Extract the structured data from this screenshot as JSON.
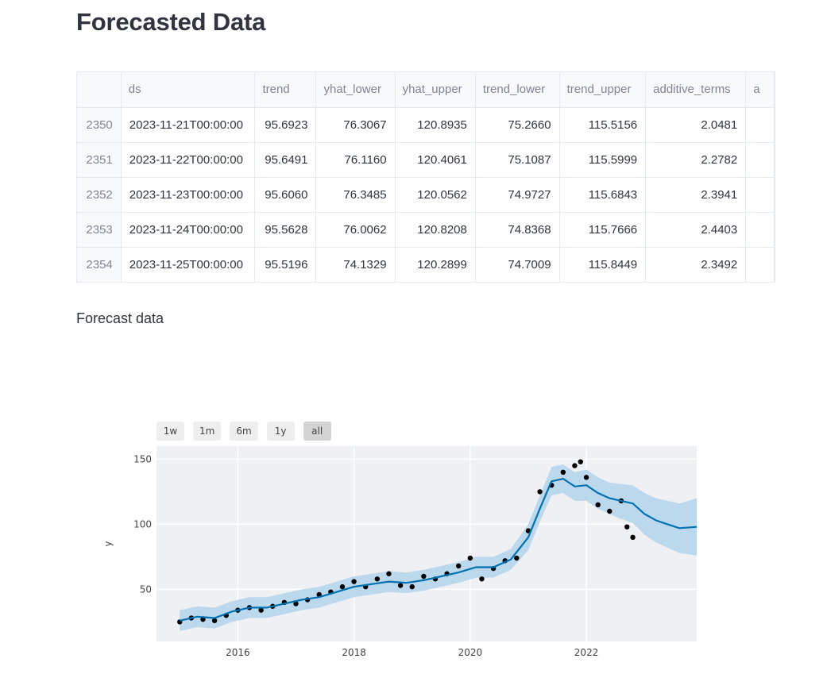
{
  "page": {
    "title": "Forecasted Data",
    "subtitle": "Forecast data"
  },
  "table": {
    "columns": [
      "",
      "ds",
      "trend",
      "yhat_lower",
      "yhat_upper",
      "trend_lower",
      "trend_upper",
      "additive_terms",
      "a"
    ],
    "rows": [
      [
        "2350",
        "2023-11-21T00:00:00",
        "95.6923",
        "76.3067",
        "120.8935",
        "75.2660",
        "115.5156",
        "2.0481"
      ],
      [
        "2351",
        "2023-11-22T00:00:00",
        "95.6491",
        "76.1160",
        "120.4061",
        "75.1087",
        "115.5999",
        "2.2782"
      ],
      [
        "2352",
        "2023-11-23T00:00:00",
        "95.6060",
        "76.3485",
        "120.0562",
        "74.9727",
        "115.6843",
        "2.3941"
      ],
      [
        "2353",
        "2023-11-24T00:00:00",
        "95.5628",
        "76.0062",
        "120.8208",
        "74.8368",
        "115.7666",
        "2.4403"
      ],
      [
        "2354",
        "2023-11-25T00:00:00",
        "95.5196",
        "74.1329",
        "120.2899",
        "74.7009",
        "115.8449",
        "2.3492"
      ]
    ]
  },
  "range_selector": {
    "buttons": [
      "1w",
      "1m",
      "6m",
      "1y",
      "all"
    ],
    "active": "all"
  },
  "colors": {
    "forecast_line": "#0072b2",
    "band": "#bcd8ec",
    "actual_points": "#000000",
    "plot_bg": "#eff0f4"
  },
  "chart_data": {
    "type": "line",
    "ylabel": "y",
    "xlim": [
      2014.6,
      2023.9
    ],
    "ylim": [
      10,
      160
    ],
    "x_ticks": [
      2016,
      2018,
      2020,
      2022
    ],
    "x_tick_labels": [
      "2016",
      "2018",
      "2020",
      "2022"
    ],
    "y_ticks": [
      50,
      100,
      150
    ],
    "y_tick_labels": [
      "50",
      "100",
      "150"
    ],
    "grid": true,
    "series": [
      {
        "kind": "forecast",
        "x": [
          2015.0,
          2015.3,
          2015.6,
          2015.9,
          2016.2,
          2016.5,
          2016.8,
          2017.1,
          2017.4,
          2017.7,
          2018.0,
          2018.3,
          2018.6,
          2018.9,
          2019.2,
          2019.5,
          2019.8,
          2020.1,
          2020.4,
          2020.7,
          2021.0,
          2021.2,
          2021.4,
          2021.6,
          2021.8,
          2022.0,
          2022.2,
          2022.4,
          2022.6,
          2022.8,
          2023.0,
          2023.2,
          2023.4,
          2023.6,
          2023.9
        ],
        "yhat": [
          26,
          29,
          28,
          33,
          36,
          36,
          39,
          42,
          44,
          48,
          52,
          54,
          56,
          55,
          57,
          60,
          63,
          67,
          67,
          73,
          90,
          112,
          133,
          135,
          129,
          130,
          124,
          120,
          118,
          116,
          108,
          103,
          100,
          97,
          98
        ],
        "lower": [
          18,
          21,
          20,
          25,
          28,
          28,
          31,
          34,
          36,
          40,
          44,
          46,
          48,
          47,
          49,
          52,
          55,
          59,
          59,
          65,
          80,
          102,
          122,
          124,
          118,
          118,
          112,
          108,
          104,
          101,
          92,
          86,
          82,
          78,
          76
        ],
        "upper": [
          34,
          37,
          36,
          41,
          44,
          44,
          47,
          50,
          52,
          56,
          60,
          62,
          64,
          63,
          65,
          68,
          71,
          75,
          75,
          81,
          100,
          122,
          144,
          146,
          140,
          142,
          136,
          132,
          131,
          130,
          124,
          120,
          118,
          116,
          120
        ]
      },
      {
        "kind": "actual",
        "x": [
          2015.0,
          2015.2,
          2015.4,
          2015.6,
          2015.8,
          2016.0,
          2016.2,
          2016.4,
          2016.6,
          2016.8,
          2017.0,
          2017.2,
          2017.4,
          2017.6,
          2017.8,
          2018.0,
          2018.2,
          2018.4,
          2018.6,
          2018.8,
          2019.0,
          2019.2,
          2019.4,
          2019.6,
          2019.8,
          2020.0,
          2020.2,
          2020.4,
          2020.6,
          2020.8,
          2021.0,
          2021.2,
          2021.4,
          2021.6,
          2021.8,
          2021.9,
          2022.0,
          2022.2,
          2022.4,
          2022.6,
          2022.7,
          2022.8
        ],
        "y": [
          25,
          28,
          27,
          26,
          30,
          34,
          36,
          34,
          37,
          40,
          39,
          42,
          46,
          48,
          52,
          56,
          52,
          58,
          62,
          53,
          52,
          60,
          58,
          62,
          68,
          74,
          58,
          66,
          72,
          74,
          95,
          125,
          130,
          140,
          145,
          148,
          136,
          115,
          110,
          118,
          98,
          90
        ]
      }
    ]
  }
}
